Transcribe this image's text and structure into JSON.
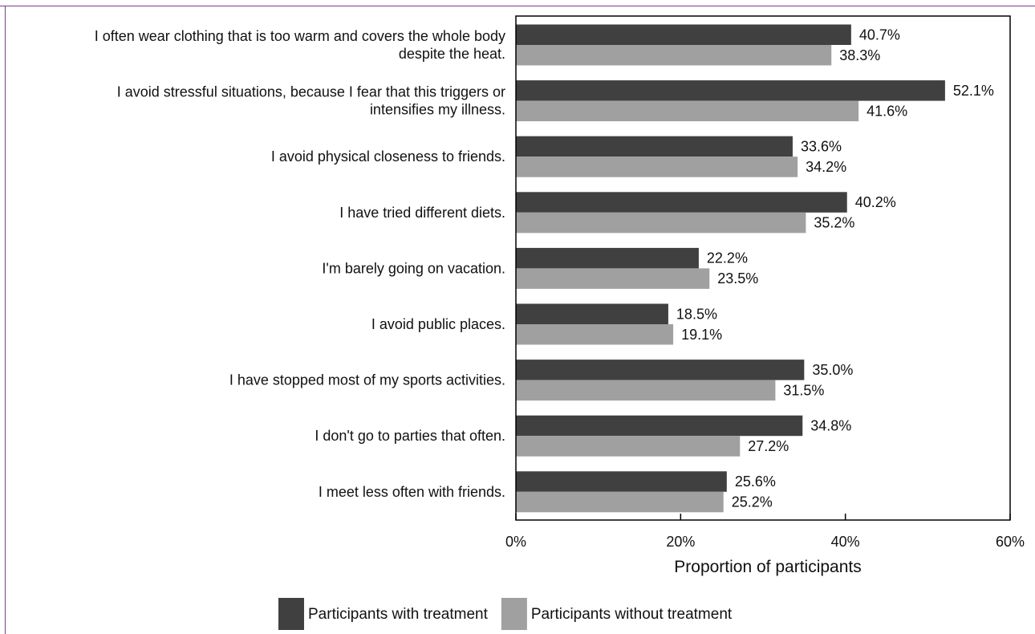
{
  "chart_data": {
    "type": "bar",
    "orientation": "horizontal",
    "title": "",
    "xlabel": "Proportion of participants",
    "ylabel": "",
    "xlim": [
      0,
      60
    ],
    "xticks": [
      0,
      20,
      40,
      60
    ],
    "xtick_labels": [
      "0%",
      "20%",
      "40%",
      "60%"
    ],
    "grid": false,
    "legend_position": "bottom",
    "categories": [
      [
        "I often wear clothing that is too warm and covers the whole body",
        "despite the heat."
      ],
      [
        "I avoid stressful situations, because I fear that this triggers or",
        "intensifies my illness."
      ],
      [
        "I avoid physical closeness to friends."
      ],
      [
        "I have tried different diets."
      ],
      [
        "I'm barely going on vacation."
      ],
      [
        "I avoid public places."
      ],
      [
        "I have stopped most of my sports activities."
      ],
      [
        "I don't go to parties that often."
      ],
      [
        "I meet less often with friends."
      ]
    ],
    "series": [
      {
        "name": "Participants with treatment",
        "color": "#404040",
        "values": [
          40.7,
          52.1,
          33.6,
          40.2,
          22.2,
          18.5,
          35.0,
          34.8,
          25.6
        ],
        "labels": [
          "40.7%",
          "52.1%",
          "33.6%",
          "40.2%",
          "22.2%",
          "18.5%",
          "35.0%",
          "34.8%",
          "25.6%"
        ]
      },
      {
        "name": "Participants without treatment",
        "color": "#a0a0a0",
        "values": [
          38.3,
          41.6,
          34.2,
          35.2,
          23.5,
          19.1,
          31.5,
          27.2,
          25.2
        ],
        "labels": [
          "38.3%",
          "41.6%",
          "34.2%",
          "35.2%",
          "23.5%",
          "19.1%",
          "31.5%",
          "27.2%",
          "25.2%"
        ]
      }
    ]
  }
}
